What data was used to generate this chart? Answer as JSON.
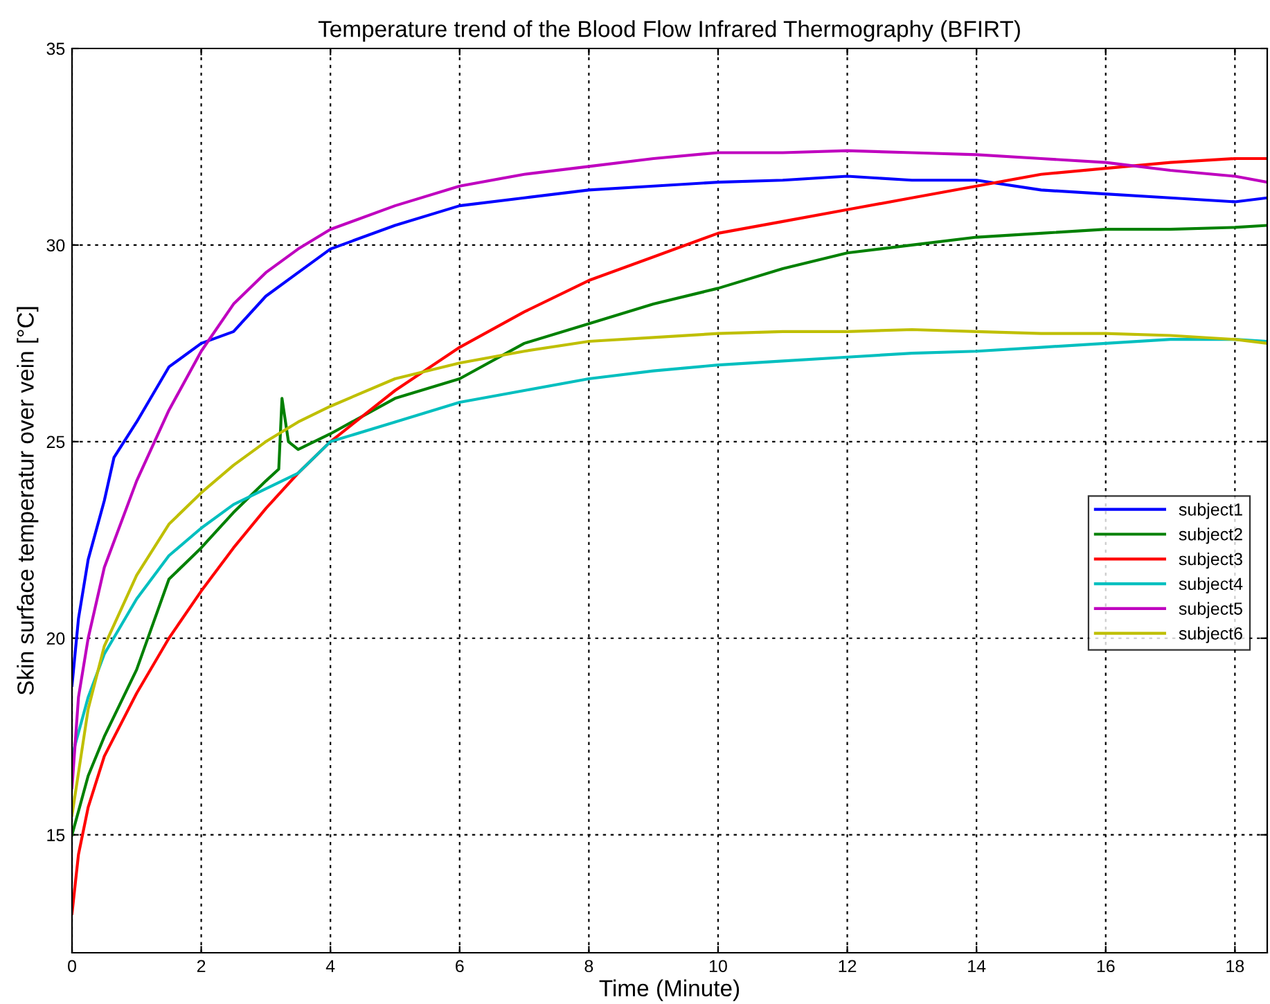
{
  "chart_data": {
    "type": "line",
    "title": "Temperature trend of the Blood Flow Infrared Thermography (BFIRT)",
    "xlabel": "Time (Minute)",
    "ylabel": "Skin surface temperatur over vein [°C]",
    "xlim": [
      0,
      18.5
    ],
    "xticks": [
      0,
      2,
      4,
      6,
      8,
      10,
      12,
      14,
      16,
      18
    ],
    "ylim": [
      12,
      35
    ],
    "yticks": [
      15,
      20,
      25,
      30,
      35
    ],
    "grid": true,
    "legend": "right",
    "marker": "none",
    "line_style": "solid",
    "series": [
      {
        "name": "subject1",
        "color": "#0000ff",
        "x": [
          0,
          0.1,
          0.25,
          0.5,
          0.65,
          1,
          1.5,
          2,
          2.5,
          3,
          3.5,
          4,
          5,
          6,
          7,
          8,
          9,
          10,
          11,
          12,
          13,
          14,
          15,
          16,
          17,
          18,
          18.5
        ],
        "values": [
          18.8,
          20.5,
          22,
          23.5,
          24.6,
          25.5,
          26.9,
          27.5,
          27.8,
          28.7,
          29.3,
          29.9,
          30.5,
          31.0,
          31.2,
          31.4,
          31.5,
          31.6,
          31.65,
          31.75,
          31.65,
          31.65,
          31.4,
          31.3,
          31.2,
          31.1,
          31.2
        ]
      },
      {
        "name": "subject2",
        "color": "#008000",
        "x": [
          0,
          0.25,
          0.5,
          1,
          1.5,
          2,
          2.5,
          3,
          3.2,
          3.25,
          3.35,
          3.5,
          4,
          5,
          6,
          7,
          8,
          9,
          10,
          11,
          12,
          13,
          14,
          15,
          16,
          17,
          18,
          18.5
        ],
        "values": [
          15,
          16.5,
          17.5,
          19.2,
          21.5,
          22.3,
          23.2,
          24,
          24.3,
          26.1,
          25,
          24.8,
          25.2,
          26.1,
          26.6,
          27.5,
          28,
          28.5,
          28.9,
          29.4,
          29.8,
          30.0,
          30.2,
          30.3,
          30.4,
          30.4,
          30.45,
          30.5
        ]
      },
      {
        "name": "subject3",
        "color": "#ff0000",
        "x": [
          0,
          0.1,
          0.25,
          0.5,
          1,
          1.5,
          2,
          2.5,
          3,
          3.5,
          4,
          5,
          6,
          7,
          8,
          9,
          10,
          11,
          12,
          13,
          14,
          15,
          16,
          17,
          18,
          18.5
        ],
        "values": [
          13,
          14.5,
          15.7,
          17,
          18.6,
          20,
          21.2,
          22.3,
          23.3,
          24.2,
          25,
          26.3,
          27.4,
          28.3,
          29.1,
          29.7,
          30.3,
          30.6,
          30.9,
          31.2,
          31.5,
          31.8,
          31.95,
          32.1,
          32.2,
          32.2
        ]
      },
      {
        "name": "subject4",
        "color": "#00bfbf",
        "x": [
          0,
          0.25,
          0.5,
          1,
          1.5,
          2,
          2.5,
          3,
          3.5,
          4,
          5,
          6,
          7,
          8,
          9,
          10,
          11,
          12,
          13,
          14,
          15,
          16,
          17,
          18,
          18.5
        ],
        "values": [
          17,
          18.5,
          19.6,
          21,
          22.1,
          22.8,
          23.4,
          23.8,
          24.2,
          25,
          25.5,
          26,
          26.3,
          26.6,
          26.8,
          26.95,
          27.05,
          27.15,
          27.25,
          27.3,
          27.4,
          27.5,
          27.6,
          27.6,
          27.55
        ]
      },
      {
        "name": "subject5",
        "color": "#bf00bf",
        "x": [
          0,
          0.1,
          0.25,
          0.5,
          1,
          1.5,
          2,
          2.5,
          3,
          3.5,
          4,
          5,
          6,
          7,
          8,
          9,
          10,
          11,
          12,
          13,
          14,
          15,
          16,
          17,
          18,
          18.5
        ],
        "values": [
          16.2,
          18.5,
          20,
          21.8,
          24,
          25.8,
          27.3,
          28.5,
          29.3,
          29.9,
          30.4,
          31.0,
          31.5,
          31.8,
          32.0,
          32.2,
          32.35,
          32.35,
          32.4,
          32.35,
          32.3,
          32.2,
          32.1,
          31.9,
          31.75,
          31.6
        ]
      },
      {
        "name": "subject6",
        "color": "#bfbf00",
        "x": [
          0,
          0.25,
          0.5,
          1,
          1.5,
          2,
          2.5,
          3,
          3.5,
          4,
          5,
          6,
          7,
          8,
          9,
          10,
          11,
          12,
          13,
          14,
          15,
          16,
          17,
          18,
          18.5
        ],
        "values": [
          15.5,
          18.2,
          19.8,
          21.6,
          22.9,
          23.7,
          24.4,
          25,
          25.5,
          25.9,
          26.6,
          27.0,
          27.3,
          27.55,
          27.65,
          27.75,
          27.8,
          27.8,
          27.85,
          27.8,
          27.75,
          27.75,
          27.7,
          27.6,
          27.5
        ]
      }
    ]
  }
}
